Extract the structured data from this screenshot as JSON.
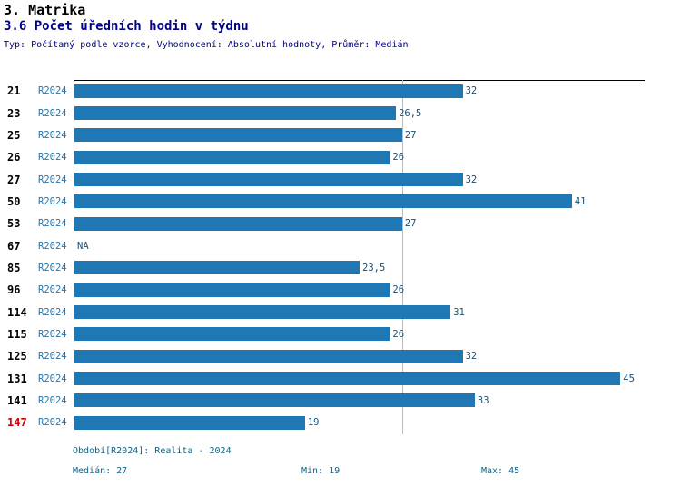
{
  "header": {
    "title": "3. Matrika",
    "subtitle": "3.6 Počet úředních hodin v týdnu",
    "meta": "Typ: Počítaný podle vzorce, Vyhodnocení: Absolutní hodnoty, Průměr: Medián"
  },
  "chart_data": {
    "type": "bar",
    "orientation": "horizontal",
    "title": "3.6 Počet úředních hodin v týdnu",
    "categories": [
      "21",
      "23",
      "25",
      "26",
      "27",
      "50",
      "53",
      "67",
      "85",
      "96",
      "114",
      "115",
      "125",
      "131",
      "141",
      "147"
    ],
    "series": [
      {
        "name": "R2024",
        "values": [
          32,
          26.5,
          27,
          26,
          32,
          41,
          27,
          null,
          23.5,
          26,
          31,
          26,
          32,
          45,
          33,
          19
        ]
      }
    ],
    "value_labels": [
      "32",
      "26,5",
      "27",
      "26",
      "32",
      "41",
      "27",
      "NA",
      "23,5",
      "26",
      "31",
      "26",
      "32",
      "45",
      "33",
      "19"
    ],
    "row_series_label": "R2024",
    "xlim": [
      0,
      47
    ],
    "median_line_value": 27,
    "highlighted_category": "147",
    "grid": "median-line-only",
    "legend_position": "bottom",
    "colors": {
      "bar": "#1f77b4",
      "series_label": "#1f77b4",
      "value_label": "#1b4f72",
      "category_label": "#000000",
      "highlighted_category_label": "#cc0000",
      "median_line": "#9cc3dd",
      "axis_line": "#000000",
      "subtitle_text": "#00008b",
      "footer_text": "#106487"
    }
  },
  "footer": {
    "period": "Období[R2024]: Realita - 2024",
    "median": "Medián: 27",
    "min": "Min: 19",
    "max": "Max: 45"
  }
}
